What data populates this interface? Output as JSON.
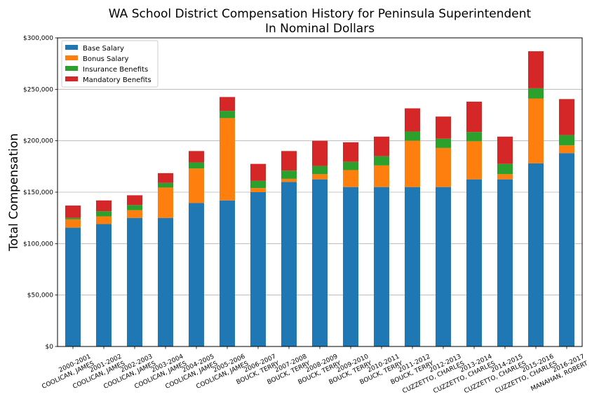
{
  "chart_data": {
    "type": "bar",
    "stacked": true,
    "title": "WA School District Compensation History for Peninsula Superintendent",
    "subtitle": "In Nominal Dollars",
    "xlabel": "",
    "ylabel": "Total Compensation",
    "ylim": [
      0,
      300000
    ],
    "yticks": [
      "$0",
      "$50,000",
      "$100,000",
      "$150,000",
      "$200,000",
      "$250,000",
      "$300,000"
    ],
    "ytick_values": [
      0,
      50000,
      100000,
      150000,
      200000,
      250000,
      300000
    ],
    "grid": "horizontal",
    "legend_position": "top-left",
    "categories": [
      "2000-2001\nCOOLICAN, JAMES",
      "2001-2002\nCOOLICAN, JAMES",
      "2002-2003\nCOOLICAN, JAMES",
      "2003-2004\nCOOLICAN, JAMES",
      "2004-2005\nCOOLICAN, JAMES",
      "2005-2006\nCOOLICAN, JAMES",
      "2006-2007\nBOUCK, TERRY",
      "2007-2008\nBOUCK, TERRY",
      "2008-2009\nBOUCK, TERRY",
      "2009-2010\nBOUCK, TERRY",
      "2010-2011\nBOUCK, TERRY",
      "2011-2012\nBOUCK, TERRY",
      "2012-2013\nCUZZETTO, CHARLES",
      "2013-2014\nCUZZETTO, CHARLES",
      "2014-2015\nCUZZETTO, CHARLES",
      "2015-2016\nCUZZETTO, CHARLES",
      "2016-2017\nMANAHAN, ROBERT"
    ],
    "series": [
      {
        "name": "Base Salary",
        "color": "#1f77b4",
        "values": [
          115500,
          119000,
          125000,
          125000,
          139500,
          142000,
          150000,
          160000,
          162500,
          155000,
          155000,
          155000,
          155000,
          162500,
          162500,
          178000,
          188000
        ]
      },
      {
        "name": "Bonus Salary",
        "color": "#ff7f0e",
        "values": [
          8000,
          7500,
          7500,
          29500,
          33500,
          80000,
          4000,
          3000,
          5000,
          16500,
          21000,
          45000,
          38000,
          37000,
          5000,
          63000,
          7500
        ]
      },
      {
        "name": "Insurance Benefits",
        "color": "#2ca02c",
        "values": [
          1500,
          5000,
          5000,
          4500,
          6000,
          7000,
          7000,
          8000,
          8000,
          8000,
          9000,
          9000,
          9000,
          9000,
          10000,
          10000,
          10000
        ]
      },
      {
        "name": "Mandatory Benefits",
        "color": "#d62728",
        "values": [
          12000,
          10500,
          9500,
          9500,
          11000,
          13500,
          16500,
          19000,
          24500,
          19000,
          19000,
          22500,
          21500,
          29500,
          26500,
          36000,
          35000
        ]
      }
    ]
  }
}
